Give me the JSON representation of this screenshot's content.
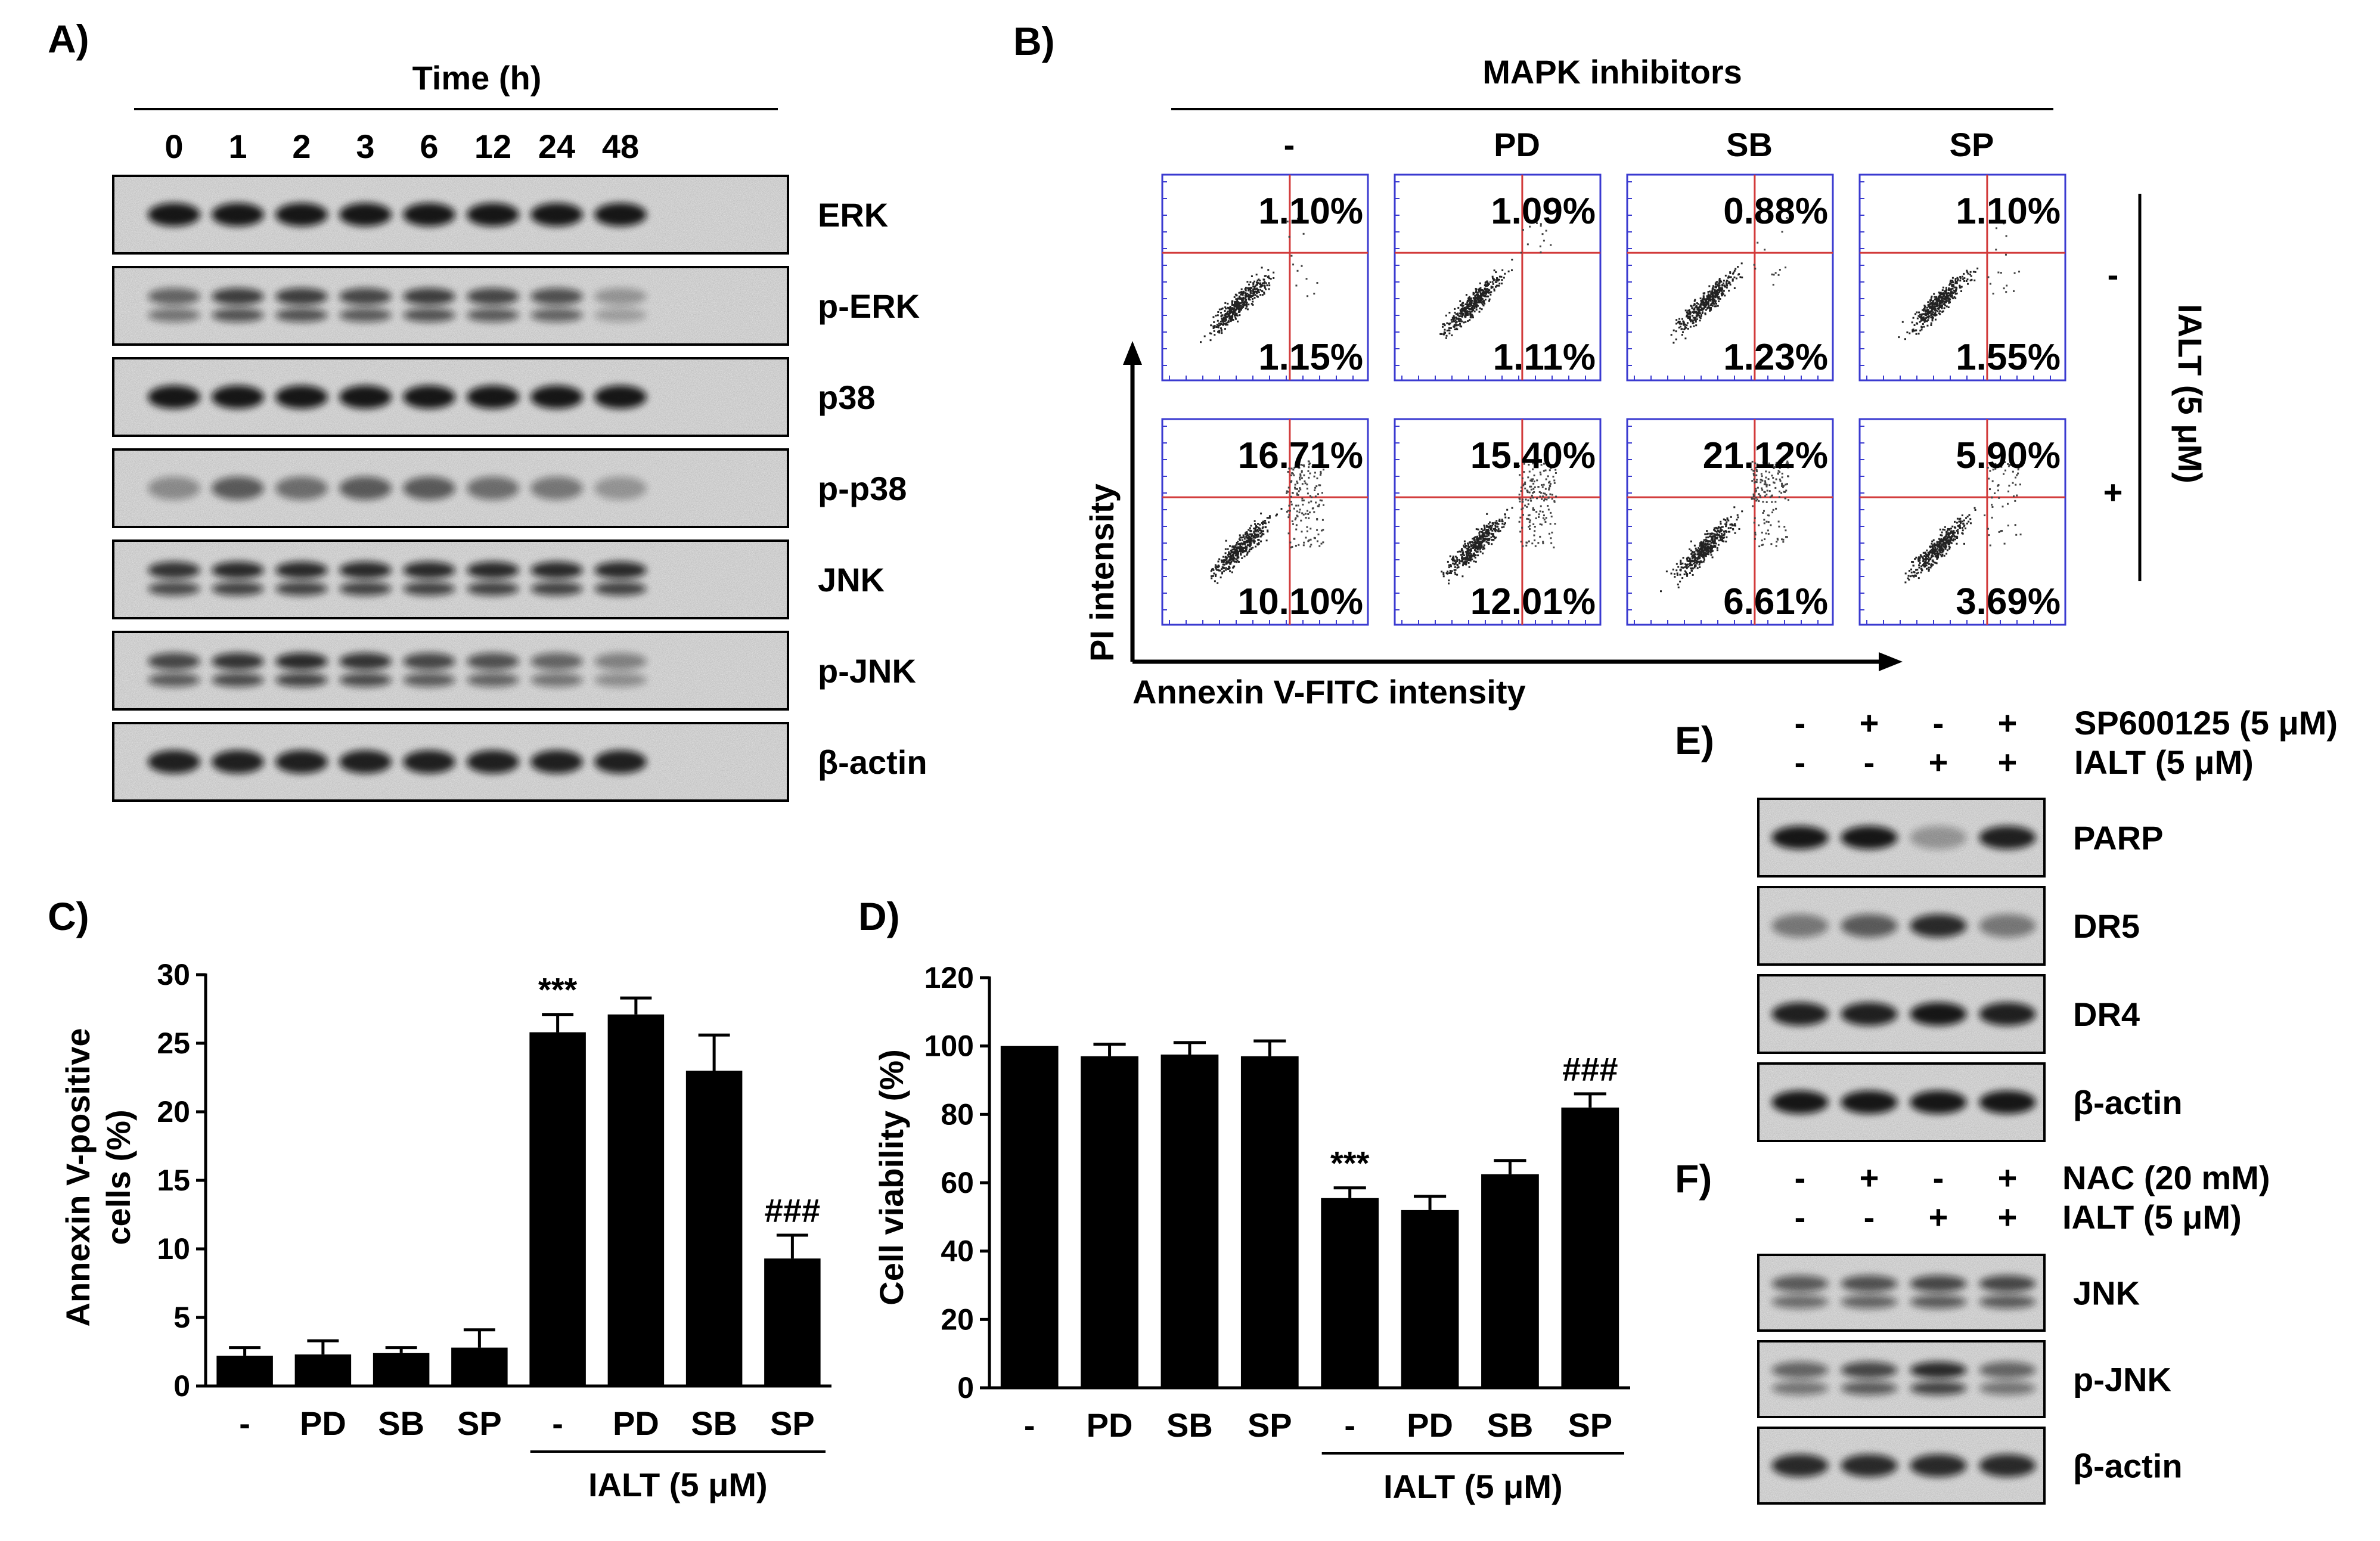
{
  "panelA": {
    "label": "A)",
    "time_title": "Time (h)",
    "times": [
      "0",
      "1",
      "2",
      "3",
      "6",
      "12",
      "24",
      "48"
    ],
    "blots": [
      {
        "name": "ERK",
        "intensity": [
          0.95,
          0.95,
          0.95,
          0.95,
          0.95,
          0.95,
          0.95,
          0.95
        ],
        "bands": 1
      },
      {
        "name": "p-ERK",
        "intensity": [
          0.55,
          0.75,
          0.75,
          0.7,
          0.75,
          0.7,
          0.65,
          0.3
        ],
        "bands": 2
      },
      {
        "name": "p38",
        "intensity": [
          0.95,
          0.95,
          0.95,
          0.95,
          0.95,
          0.95,
          0.95,
          0.95
        ],
        "bands": 1
      },
      {
        "name": "p-p38",
        "intensity": [
          0.35,
          0.6,
          0.5,
          0.6,
          0.6,
          0.5,
          0.45,
          0.3
        ],
        "bands": 1
      },
      {
        "name": "JNK",
        "intensity": [
          0.8,
          0.85,
          0.85,
          0.85,
          0.85,
          0.85,
          0.85,
          0.85
        ],
        "bands": 2
      },
      {
        "name": "p-JNK",
        "intensity": [
          0.7,
          0.8,
          0.85,
          0.8,
          0.7,
          0.65,
          0.55,
          0.4
        ],
        "bands": 2
      },
      {
        "name": "β-actin",
        "intensity": [
          0.9,
          0.9,
          0.9,
          0.9,
          0.9,
          0.9,
          0.9,
          0.9
        ],
        "bands": 1
      }
    ]
  },
  "panelB": {
    "label": "B)",
    "header": "MAPK inhibitors",
    "columns": [
      "-",
      "PD",
      "SB",
      "SP"
    ],
    "rows": [
      "-",
      "+"
    ],
    "side_label": "IALT (5 μM)",
    "y_axis": "PI intensity",
    "x_axis": "Annexin V-FITC intensity",
    "quadrants": [
      [
        {
          "ur": "1.10%",
          "lr": "1.15%"
        },
        {
          "ur": "1.09%",
          "lr": "1.11%"
        },
        {
          "ur": "0.88%",
          "lr": "1.23%"
        },
        {
          "ur": "1.10%",
          "lr": "1.55%"
        }
      ],
      [
        {
          "ur": "16.71%",
          "lr": "10.10%"
        },
        {
          "ur": "15.40%",
          "lr": "12.01%"
        },
        {
          "ur": "21.12%",
          "lr": "6.61%"
        },
        {
          "ur": "5.90%",
          "lr": "3.69%"
        }
      ]
    ]
  },
  "panelC": {
    "label": "C)",
    "chart_data": {
      "type": "bar",
      "categories": [
        "-",
        "PD",
        "SB",
        "SP",
        "-",
        "PD",
        "SB",
        "SP"
      ],
      "values": [
        2.2,
        2.3,
        2.4,
        2.8,
        25.8,
        27.1,
        23.0,
        9.3
      ],
      "errors": [
        0.6,
        1.0,
        0.4,
        1.3,
        1.3,
        1.2,
        2.6,
        1.7
      ],
      "annotations": [
        "",
        "",
        "",
        "",
        "***",
        "",
        "",
        "###"
      ],
      "ylabel": "Annexin V-positive cells (%)",
      "ylim": [
        0,
        30
      ],
      "yticks": [
        "0",
        "5",
        "10",
        "15",
        "20",
        "25",
        "30"
      ],
      "group_label": "IALT (5 μM)"
    }
  },
  "panelD": {
    "label": "D)",
    "chart_data": {
      "type": "bar",
      "categories": [
        "-",
        "PD",
        "SB",
        "SP",
        "-",
        "PD",
        "SB",
        "SP"
      ],
      "values": [
        100,
        97,
        97.5,
        97,
        55.5,
        52,
        62.5,
        82
      ],
      "errors": [
        0,
        3.5,
        3.5,
        4.5,
        3,
        4,
        4,
        4
      ],
      "annotations": [
        "",
        "",
        "",
        "",
        "***",
        "",
        "",
        "###"
      ],
      "ylabel": "Cell viability (%)",
      "ylim": [
        0,
        120
      ],
      "yticks": [
        "0",
        "20",
        "40",
        "60",
        "80",
        "100",
        "120"
      ],
      "group_label": "IALT (5 μM)"
    }
  },
  "panelE": {
    "label": "E)",
    "treatments": [
      {
        "name": "SP600125 (5 μM)",
        "signs": [
          "-",
          "+",
          "-",
          "+"
        ]
      },
      {
        "name": "IALT (5 μM)",
        "signs": [
          "-",
          "-",
          "+",
          "+"
        ]
      }
    ],
    "blots": [
      {
        "name": "PARP",
        "intensity": [
          0.95,
          0.95,
          0.3,
          0.9
        ],
        "bands": 1
      },
      {
        "name": "DR5",
        "intensity": [
          0.45,
          0.6,
          0.85,
          0.45
        ],
        "bands": 1
      },
      {
        "name": "DR4",
        "intensity": [
          0.9,
          0.9,
          0.95,
          0.9
        ],
        "bands": 1
      },
      {
        "name": "β-actin",
        "intensity": [
          0.95,
          0.95,
          0.95,
          0.95
        ],
        "bands": 1
      }
    ]
  },
  "panelF": {
    "label": "F)",
    "treatments": [
      {
        "name": "NAC (20 mM)",
        "signs": [
          "-",
          "+",
          "-",
          "+"
        ]
      },
      {
        "name": "IALT (5 μM)",
        "signs": [
          "-",
          "-",
          "+",
          "+"
        ]
      }
    ],
    "blots": [
      {
        "name": "JNK",
        "intensity": [
          0.6,
          0.65,
          0.7,
          0.7
        ],
        "bands": 2
      },
      {
        "name": "p-JNK",
        "intensity": [
          0.55,
          0.7,
          0.85,
          0.55
        ],
        "bands": 2
      },
      {
        "name": "β-actin",
        "intensity": [
          0.85,
          0.85,
          0.85,
          0.85
        ],
        "bands": 1
      }
    ]
  }
}
